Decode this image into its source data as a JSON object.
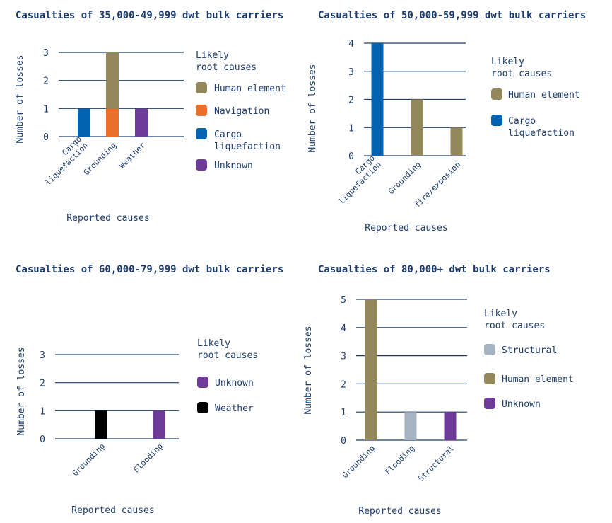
{
  "colors": {
    "human_element": "#928859",
    "navigation": "#e8702a",
    "cargo_liquefaction": "#0063b2",
    "unknown": "#6e3b9a",
    "weather": "#000000",
    "structural": "#a6b3c0",
    "text": "#1d3c6e",
    "grid": "#1d3c6e"
  },
  "chart_data": [
    {
      "type": "bar",
      "title": "Casualties of 35,000-49,999 dwt bulk carriers",
      "xlabel": "Reported causes",
      "ylabel": "Number of losses",
      "ylim": [
        0,
        3
      ],
      "yticks": [
        0,
        1,
        2,
        3
      ],
      "grid": true,
      "categories": [
        "Cargo\nliquefaction",
        "Grounding",
        "Weather"
      ],
      "stacks": [
        [
          {
            "value": 1,
            "cause": "Cargo liquefaction"
          }
        ],
        [
          {
            "value": 1,
            "cause": "Navigation"
          },
          {
            "value": 2,
            "cause": "Human element"
          }
        ],
        [
          {
            "value": 1,
            "cause": "Unknown"
          }
        ]
      ],
      "legend_title": [
        "Likely",
        "root causes"
      ],
      "legend": [
        "Human element",
        "Navigation",
        "Cargo\nliquefaction",
        "Unknown"
      ],
      "legend_colors": [
        "#928859",
        "#e8702a",
        "#0063b2",
        "#6e3b9a"
      ],
      "bar_colors": [
        [
          "#0063b2"
        ],
        [
          "#e8702a",
          "#928859"
        ],
        [
          "#6e3b9a"
        ]
      ]
    },
    {
      "type": "bar",
      "title": "Casualties of 50,000-59,999 dwt bulk carriers",
      "xlabel": "Reported causes",
      "ylabel": "Number of losses",
      "ylim": [
        0,
        4
      ],
      "yticks": [
        0,
        1,
        2,
        3,
        4
      ],
      "grid": true,
      "categories": [
        "Cargo\nliquefaction",
        "Grounding",
        "fire/exposion"
      ],
      "stacks": [
        [
          {
            "value": 4,
            "cause": "Cargo liquefaction"
          }
        ],
        [
          {
            "value": 2,
            "cause": "Human element"
          }
        ],
        [
          {
            "value": 1,
            "cause": "Human element"
          }
        ]
      ],
      "legend_title": [
        "Likely",
        "root causes"
      ],
      "legend": [
        "Human element",
        "Cargo\nliquefaction"
      ],
      "legend_colors": [
        "#928859",
        "#0063b2"
      ],
      "bar_colors": [
        [
          "#0063b2"
        ],
        [
          "#928859"
        ],
        [
          "#928859"
        ]
      ]
    },
    {
      "type": "bar",
      "title": "Casualties of 60,000-79,999 dwt bulk carriers",
      "xlabel": "Reported causes",
      "ylabel": "Number of losses",
      "ylim": [
        0,
        3
      ],
      "yticks": [
        0,
        1,
        2,
        3
      ],
      "grid": true,
      "categories": [
        "Grounding",
        "Flooding"
      ],
      "stacks": [
        [
          {
            "value": 1,
            "cause": "Weather"
          }
        ],
        [
          {
            "value": 1,
            "cause": "Unknown"
          }
        ]
      ],
      "legend_title": [
        "Likely",
        "root causes"
      ],
      "legend": [
        "Unknown",
        "Weather"
      ],
      "legend_colors": [
        "#6e3b9a",
        "#000000"
      ],
      "bar_colors": [
        [
          "#000000"
        ],
        [
          "#6e3b9a"
        ]
      ]
    },
    {
      "type": "bar",
      "title": "Casualties of 80,000+ dwt bulk carriers",
      "xlabel": "Reported causes",
      "ylabel": "Number of losses",
      "ylim": [
        0,
        5
      ],
      "yticks": [
        0,
        1,
        2,
        3,
        4,
        5
      ],
      "grid": true,
      "categories": [
        "Grounding",
        "Flooding",
        "Structural"
      ],
      "stacks": [
        [
          {
            "value": 5,
            "cause": "Human element"
          }
        ],
        [
          {
            "value": 1,
            "cause": "Structural"
          }
        ],
        [
          {
            "value": 1,
            "cause": "Unknown"
          }
        ]
      ],
      "legend_title": [
        "Likely",
        "root causes"
      ],
      "legend": [
        "Structural",
        "Human element",
        "Unknown"
      ],
      "legend_colors": [
        "#a6b3c0",
        "#928859",
        "#6e3b9a"
      ],
      "bar_colors": [
        [
          "#928859"
        ],
        [
          "#a6b3c0"
        ],
        [
          "#6e3b9a"
        ]
      ]
    }
  ]
}
